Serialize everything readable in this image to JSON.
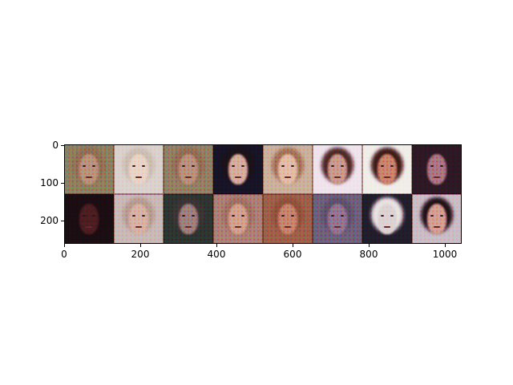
{
  "figure": {
    "x_ticks": [
      "0",
      "200",
      "400",
      "600",
      "800",
      "1000"
    ],
    "y_ticks": [
      "0",
      "100",
      "200"
    ],
    "image_grid": {
      "rows": 2,
      "cols": 8,
      "tiles": [
        {
          "bg": "#8a8a5c",
          "face": "#b79b78",
          "hair": "#8d7a52"
        },
        {
          "bg": "#d9d5cc",
          "face": "#e8d7c5",
          "hair": "#c9c3b1"
        },
        {
          "bg": "#8f8a62",
          "face": "#b79a7a",
          "hair": "#8e7852"
        },
        {
          "bg": "#161626",
          "face": "#d4b39a",
          "hair": "#1a1416"
        },
        {
          "bg": "#c9b79a",
          "face": "#e2c1a4",
          "hair": "#a07e56"
        },
        {
          "bg": "#efe6ec",
          "face": "#c8a28a",
          "hair": "#4a2e24"
        },
        {
          "bg": "#f0efe8",
          "face": "#c98d6a",
          "hair": "#3b1f16"
        },
        {
          "bg": "#2c1b24",
          "face": "#a88080",
          "hair": "#2c1b24"
        },
        {
          "bg": "#1a0f12",
          "face": "#4a2020",
          "hair": "#1a0f12"
        },
        {
          "bg": "#c7bfb5",
          "face": "#d6b8a2",
          "hair": "#b3a48f"
        },
        {
          "bg": "#2c3a30",
          "face": "#9a8a7a",
          "hair": "#3a3a34"
        },
        {
          "bg": "#a98a74",
          "face": "#d1a88a",
          "hair": "#9c7c60"
        },
        {
          "bg": "#9a6a48",
          "face": "#c48e6a",
          "hair": "#8a5a3a"
        },
        {
          "bg": "#6a6a7a",
          "face": "#8f8090",
          "hair": "#5a5a6a"
        },
        {
          "bg": "#20202a",
          "face": "#dcd6d2",
          "hair": "#e8e6e2"
        },
        {
          "bg": "#c8c2c4",
          "face": "#d3a690",
          "hair": "#1e1416"
        }
      ]
    }
  }
}
